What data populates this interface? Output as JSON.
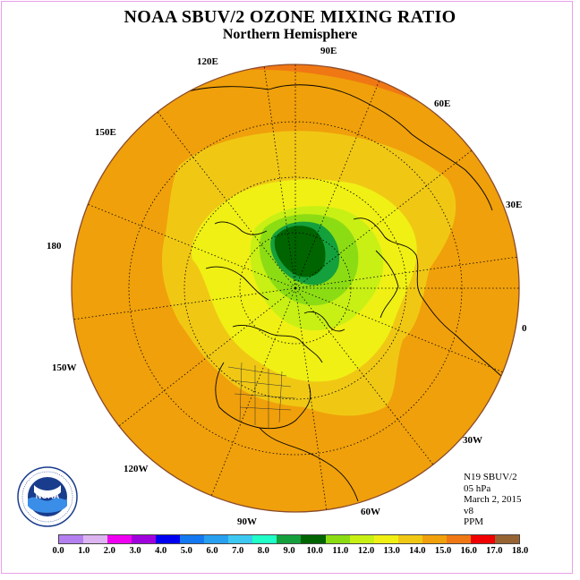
{
  "title": "NOAA SBUV/2 OZONE MIXING RATIO",
  "subtitle": "Northern Hemisphere",
  "longitude_labels": [
    "90E",
    "60E",
    "30E",
    "0",
    "30W",
    "60W",
    "90W",
    "120W",
    "150W",
    "180",
    "150E",
    "120E"
  ],
  "info": {
    "instrument": "N19 SBUV/2",
    "level": "05 hPa",
    "date": "March 2, 2015",
    "version": "v8",
    "units": "PPM"
  },
  "colorbar": {
    "colors": [
      "#b480f0",
      "#dcb4f0",
      "#f000f0",
      "#a000dc",
      "#0000f0",
      "#1478f0",
      "#28a0f0",
      "#3cc8f0",
      "#20ffc8",
      "#14a03c",
      "#006400",
      "#8cdc14",
      "#c8f014",
      "#f0f014",
      "#f0c814",
      "#f0a00a",
      "#f07814",
      "#f00000",
      "#966432"
    ],
    "ticks": [
      "0.0",
      "1.0",
      "2.0",
      "3.0",
      "4.0",
      "5.0",
      "6.0",
      "7.0",
      "8.0",
      "9.0",
      "10.0",
      "11.0",
      "12.0",
      "13.0",
      "14.0",
      "15.0",
      "16.0",
      "17.0",
      "18.0"
    ]
  },
  "logo": {
    "text": "NOAA",
    "ring_text": "NATIONAL OCEANIC AND ATMOSPHERIC ADMINISTRATION · U.S. DEPARTMENT OF COMMERCE"
  },
  "colors": {
    "high": "#f07814",
    "outer": "#f0a00a",
    "mid": "#f0c814",
    "yellow": "#f0f014",
    "lime": "#c8f014",
    "green": "#8cdc14",
    "dark_green": "#14a03c",
    "darkest": "#006400"
  }
}
